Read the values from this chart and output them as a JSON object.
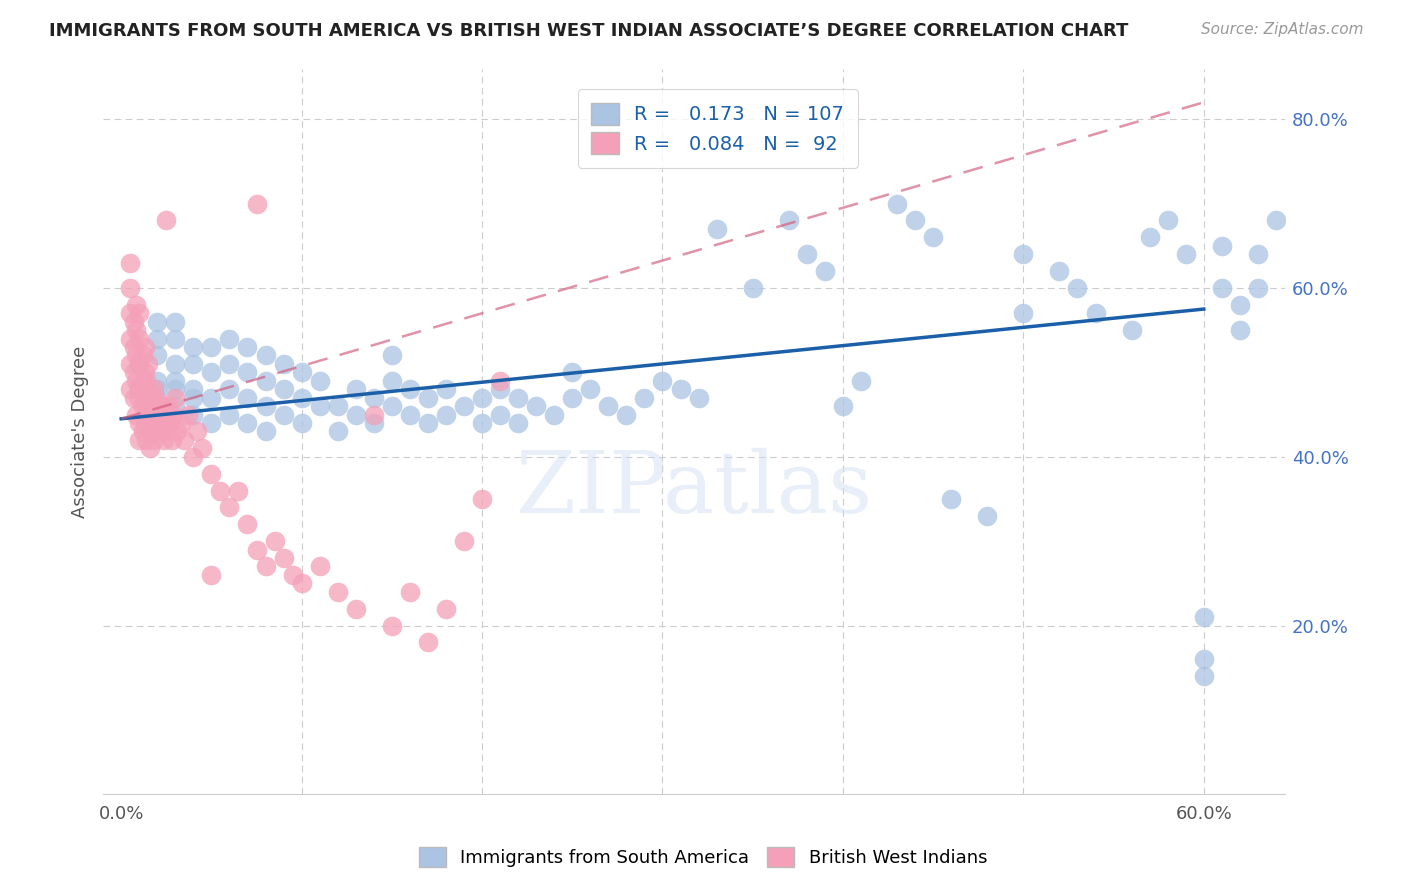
{
  "title": "IMMIGRANTS FROM SOUTH AMERICA VS BRITISH WEST INDIAN ASSOCIATE’S DEGREE CORRELATION CHART",
  "source": "Source: ZipAtlas.com",
  "ylabel": "Associate's Degree",
  "x_min": 0.0,
  "x_max": 0.6,
  "y_min": 0.0,
  "y_max": 0.86,
  "blue_R": 0.173,
  "blue_N": 107,
  "pink_R": 0.084,
  "pink_N": 92,
  "blue_color": "#aac4e2",
  "pink_color": "#f4a0b8",
  "blue_line_color": "#1a5fa8",
  "pink_line_color": "#d05878",
  "watermark": "ZIPatlas",
  "blue_line_x0": 0.0,
  "blue_line_y0": 0.445,
  "blue_line_x1": 0.6,
  "blue_line_y1": 0.575,
  "pink_line_x0": 0.0,
  "pink_line_y0": 0.445,
  "pink_line_x1": 0.6,
  "pink_line_y1": 0.82,
  "blue_pts_x": [
    0.01,
    0.01,
    0.02,
    0.02,
    0.02,
    0.02,
    0.02,
    0.02,
    0.03,
    0.03,
    0.03,
    0.03,
    0.03,
    0.03,
    0.04,
    0.04,
    0.04,
    0.04,
    0.04,
    0.05,
    0.05,
    0.05,
    0.05,
    0.06,
    0.06,
    0.06,
    0.06,
    0.07,
    0.07,
    0.07,
    0.07,
    0.08,
    0.08,
    0.08,
    0.08,
    0.09,
    0.09,
    0.09,
    0.1,
    0.1,
    0.1,
    0.11,
    0.11,
    0.12,
    0.12,
    0.13,
    0.13,
    0.14,
    0.14,
    0.15,
    0.15,
    0.15,
    0.16,
    0.16,
    0.17,
    0.17,
    0.18,
    0.18,
    0.19,
    0.2,
    0.2,
    0.21,
    0.21,
    0.22,
    0.22,
    0.23,
    0.24,
    0.25,
    0.25,
    0.26,
    0.27,
    0.28,
    0.29,
    0.3,
    0.31,
    0.32,
    0.33,
    0.35,
    0.37,
    0.38,
    0.39,
    0.4,
    0.41,
    0.43,
    0.44,
    0.45,
    0.46,
    0.48,
    0.5,
    0.5,
    0.52,
    0.53,
    0.54,
    0.56,
    0.57,
    0.58,
    0.59,
    0.6,
    0.6,
    0.6,
    0.61,
    0.61,
    0.62,
    0.62,
    0.63,
    0.63,
    0.64
  ],
  "blue_pts_y": [
    0.48,
    0.51,
    0.47,
    0.49,
    0.52,
    0.54,
    0.56,
    0.48,
    0.46,
    0.49,
    0.51,
    0.54,
    0.56,
    0.48,
    0.45,
    0.48,
    0.51,
    0.53,
    0.47,
    0.44,
    0.47,
    0.5,
    0.53,
    0.45,
    0.48,
    0.51,
    0.54,
    0.44,
    0.47,
    0.5,
    0.53,
    0.46,
    0.49,
    0.52,
    0.43,
    0.45,
    0.48,
    0.51,
    0.44,
    0.47,
    0.5,
    0.46,
    0.49,
    0.43,
    0.46,
    0.45,
    0.48,
    0.44,
    0.47,
    0.46,
    0.49,
    0.52,
    0.45,
    0.48,
    0.44,
    0.47,
    0.45,
    0.48,
    0.46,
    0.44,
    0.47,
    0.45,
    0.48,
    0.44,
    0.47,
    0.46,
    0.45,
    0.47,
    0.5,
    0.48,
    0.46,
    0.45,
    0.47,
    0.49,
    0.48,
    0.47,
    0.67,
    0.6,
    0.68,
    0.64,
    0.62,
    0.46,
    0.49,
    0.7,
    0.68,
    0.66,
    0.35,
    0.33,
    0.64,
    0.57,
    0.62,
    0.6,
    0.57,
    0.55,
    0.66,
    0.68,
    0.64,
    0.16,
    0.14,
    0.21,
    0.65,
    0.6,
    0.55,
    0.58,
    0.6,
    0.64,
    0.68
  ],
  "pink_pts_x": [
    0.005,
    0.005,
    0.005,
    0.005,
    0.005,
    0.005,
    0.007,
    0.007,
    0.007,
    0.007,
    0.008,
    0.008,
    0.008,
    0.008,
    0.008,
    0.01,
    0.01,
    0.01,
    0.01,
    0.01,
    0.01,
    0.01,
    0.012,
    0.012,
    0.012,
    0.012,
    0.013,
    0.013,
    0.013,
    0.013,
    0.014,
    0.014,
    0.014,
    0.015,
    0.015,
    0.015,
    0.016,
    0.016,
    0.016,
    0.017,
    0.017,
    0.018,
    0.018,
    0.018,
    0.019,
    0.019,
    0.02,
    0.02,
    0.021,
    0.022,
    0.022,
    0.023,
    0.024,
    0.024,
    0.025,
    0.026,
    0.027,
    0.028,
    0.029,
    0.03,
    0.031,
    0.033,
    0.035,
    0.037,
    0.04,
    0.042,
    0.045,
    0.05,
    0.055,
    0.06,
    0.065,
    0.07,
    0.075,
    0.08,
    0.085,
    0.09,
    0.095,
    0.1,
    0.11,
    0.12,
    0.13,
    0.14,
    0.15,
    0.16,
    0.17,
    0.18,
    0.19,
    0.2,
    0.21,
    0.025,
    0.05,
    0.075
  ],
  "pink_pts_y": [
    0.48,
    0.51,
    0.54,
    0.57,
    0.6,
    0.63,
    0.5,
    0.53,
    0.56,
    0.47,
    0.49,
    0.52,
    0.55,
    0.58,
    0.45,
    0.48,
    0.51,
    0.54,
    0.57,
    0.44,
    0.47,
    0.42,
    0.46,
    0.49,
    0.52,
    0.43,
    0.47,
    0.5,
    0.53,
    0.44,
    0.46,
    0.49,
    0.42,
    0.45,
    0.48,
    0.51,
    0.44,
    0.47,
    0.41,
    0.43,
    0.46,
    0.45,
    0.48,
    0.42,
    0.44,
    0.47,
    0.43,
    0.46,
    0.44,
    0.46,
    0.43,
    0.45,
    0.42,
    0.45,
    0.43,
    0.46,
    0.44,
    0.42,
    0.45,
    0.47,
    0.43,
    0.44,
    0.42,
    0.45,
    0.4,
    0.43,
    0.41,
    0.38,
    0.36,
    0.34,
    0.36,
    0.32,
    0.29,
    0.27,
    0.3,
    0.28,
    0.26,
    0.25,
    0.27,
    0.24,
    0.22,
    0.45,
    0.2,
    0.24,
    0.18,
    0.22,
    0.3,
    0.35,
    0.49,
    0.68,
    0.26,
    0.7
  ]
}
